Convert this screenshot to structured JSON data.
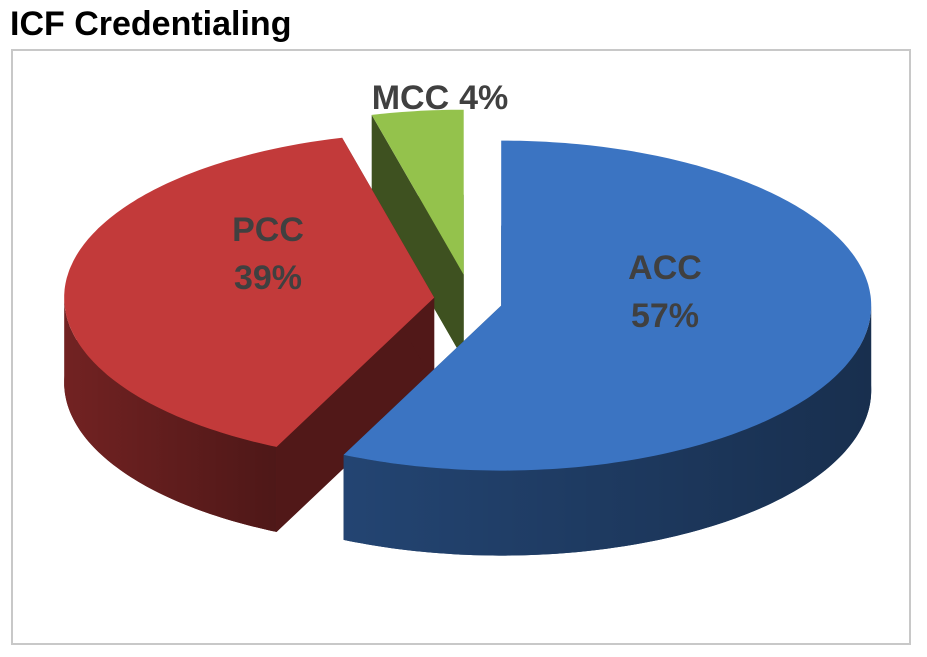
{
  "chart_data": {
    "type": "pie3d",
    "title": "ICF Credentialing",
    "categories": [
      "ACC",
      "PCC",
      "MCC"
    ],
    "values": [
      57,
      39,
      4
    ],
    "value_labels": [
      "57%",
      "39%",
      "4%"
    ],
    "colors": [
      "#3b74c2",
      "#c23a3a",
      "#94c24c"
    ]
  }
}
